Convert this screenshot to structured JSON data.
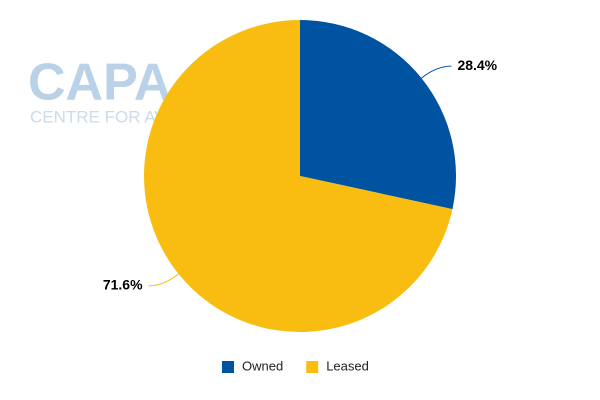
{
  "chart_data": {
    "type": "pie",
    "watermark": {
      "logo": "CAPA",
      "tagline": "CENTRE FOR AVIATION"
    },
    "categories": [
      "Owned",
      "Leased"
    ],
    "values": [
      28.4,
      71.6
    ],
    "value_labels": [
      "28.4%",
      "71.6%"
    ],
    "colors": [
      "#0053a1",
      "#f8bd10"
    ],
    "legend": "bottom"
  }
}
